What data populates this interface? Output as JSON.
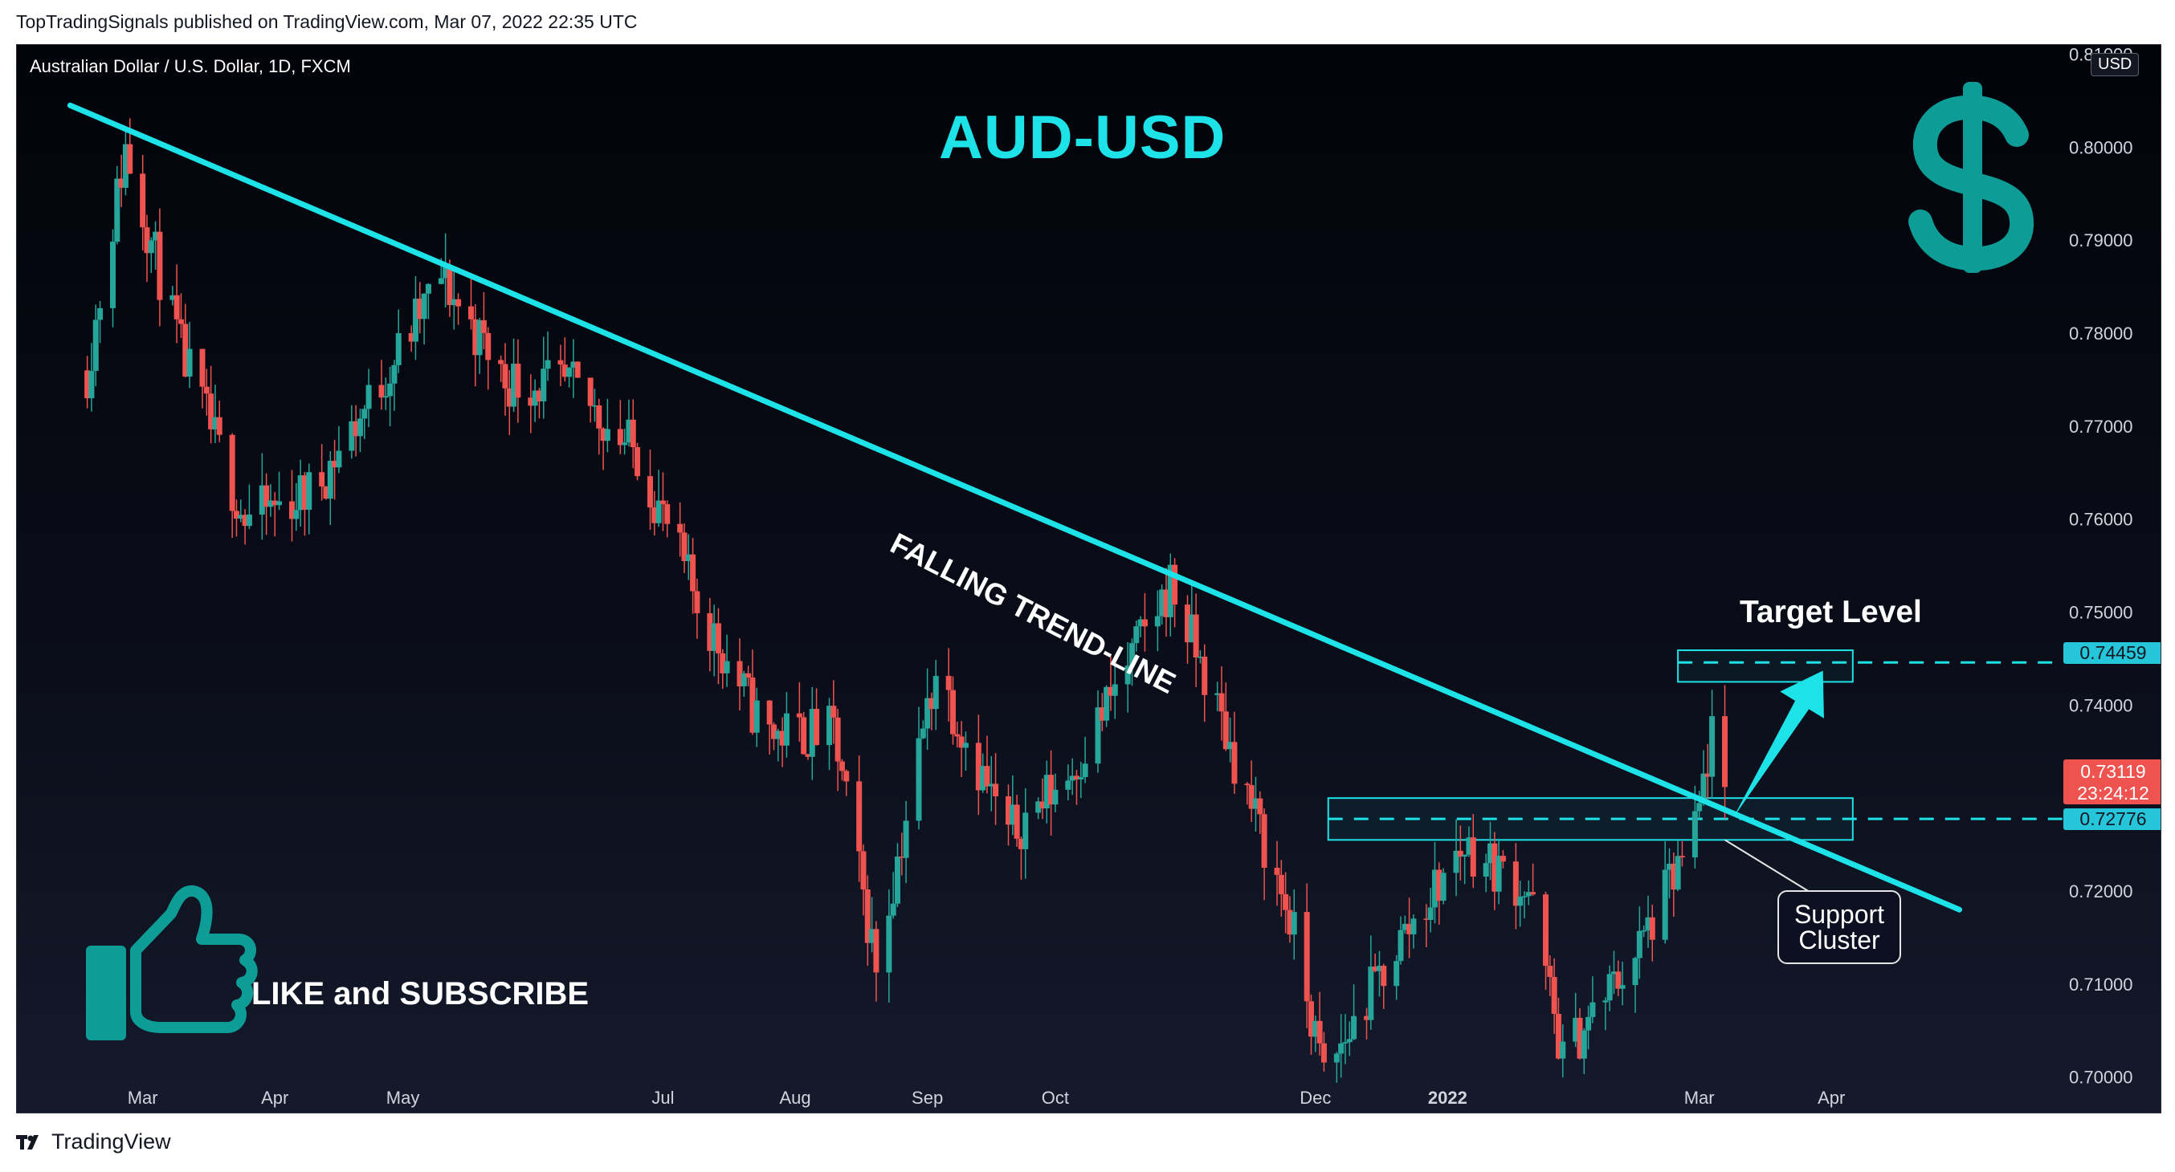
{
  "attribution": "TopTradingSignals published on TradingView.com, Mar 07, 2022 22:35 UTC",
  "symbol_line": "Australian Dollar / U.S. Dollar, 1D, FXCM",
  "currency_badge": "USD",
  "annotations": {
    "title": "AUD-USD",
    "trend_line_label": "FALLING TREND-LINE",
    "target_label": "Target Level",
    "support_label_line1": "Support",
    "support_label_line2": "Cluster",
    "cta": "LIKE and SUBSCRIBE"
  },
  "price_tags": {
    "target": "0.74459",
    "last_price": "0.73119",
    "countdown": "23:24:12",
    "support": "0.72776"
  },
  "footer": {
    "brand": "TradingView"
  },
  "colors": {
    "accent": "#1de3e8",
    "bullish": "#26a69a",
    "bearish": "#ef5350",
    "background": "#0c0f1a"
  },
  "icons": [
    "dollar-icon",
    "thumbs-up-icon",
    "tradingview-logo-icon"
  ],
  "chart_data": {
    "type": "candlestick",
    "title": "Australian Dollar / U.S. Dollar, 1D, FXCM",
    "ylabel": "USD",
    "ylim": [
      0.696,
      0.811
    ],
    "y_ticks": [
      "0.81000",
      "0.80000",
      "0.79000",
      "0.78000",
      "0.77000",
      "0.76000",
      "0.75000",
      "0.74000",
      "0.73000",
      "0.72000",
      "0.71000",
      "0.70000"
    ],
    "x_tick_labels": [
      "Mar",
      "Apr",
      "May",
      "Jul",
      "Aug",
      "Sep",
      "Oct",
      "Dec",
      "2022",
      "Mar",
      "Apr"
    ],
    "grid": false,
    "series": [
      {
        "name": "Close",
        "points": [
          {
            "date": "2021-02-16",
            "close": 0.776
          },
          {
            "date": "2021-02-25",
            "close": 0.8
          },
          {
            "date": "2021-03-10",
            "close": 0.778
          },
          {
            "date": "2021-03-25",
            "close": 0.76
          },
          {
            "date": "2021-04-10",
            "close": 0.763
          },
          {
            "date": "2021-04-25",
            "close": 0.774
          },
          {
            "date": "2021-05-10",
            "close": 0.786
          },
          {
            "date": "2021-05-25",
            "close": 0.775
          },
          {
            "date": "2021-06-10",
            "close": 0.774
          },
          {
            "date": "2021-06-25",
            "close": 0.767
          },
          {
            "date": "2021-07-10",
            "close": 0.75
          },
          {
            "date": "2021-07-25",
            "close": 0.737
          },
          {
            "date": "2021-08-10",
            "close": 0.737
          },
          {
            "date": "2021-08-20",
            "close": 0.712
          },
          {
            "date": "2021-09-03",
            "close": 0.744
          },
          {
            "date": "2021-09-20",
            "close": 0.726
          },
          {
            "date": "2021-10-05",
            "close": 0.733
          },
          {
            "date": "2021-10-28",
            "close": 0.753
          },
          {
            "date": "2021-11-10",
            "close": 0.737
          },
          {
            "date": "2021-11-25",
            "close": 0.717
          },
          {
            "date": "2021-12-03",
            "close": 0.7
          },
          {
            "date": "2021-12-20",
            "close": 0.714
          },
          {
            "date": "2022-01-05",
            "close": 0.725
          },
          {
            "date": "2022-01-20",
            "close": 0.72
          },
          {
            "date": "2022-01-28",
            "close": 0.702
          },
          {
            "date": "2022-02-15",
            "close": 0.714
          },
          {
            "date": "2022-02-28",
            "close": 0.726
          },
          {
            "date": "2022-03-04",
            "close": 0.737
          },
          {
            "date": "2022-03-07",
            "close": 0.73119
          }
        ]
      }
    ],
    "trend_line": {
      "start": {
        "date": "2021-02-12",
        "price": 0.8045
      },
      "end": {
        "date": "2022-05-01",
        "price": 0.718
      }
    },
    "zones": [
      {
        "name": "Target Level",
        "low": 0.7425,
        "high": 0.7459,
        "level": 0.74459
      },
      {
        "name": "Support Cluster",
        "low": 0.7255,
        "high": 0.73,
        "level": 0.72776
      }
    ]
  }
}
